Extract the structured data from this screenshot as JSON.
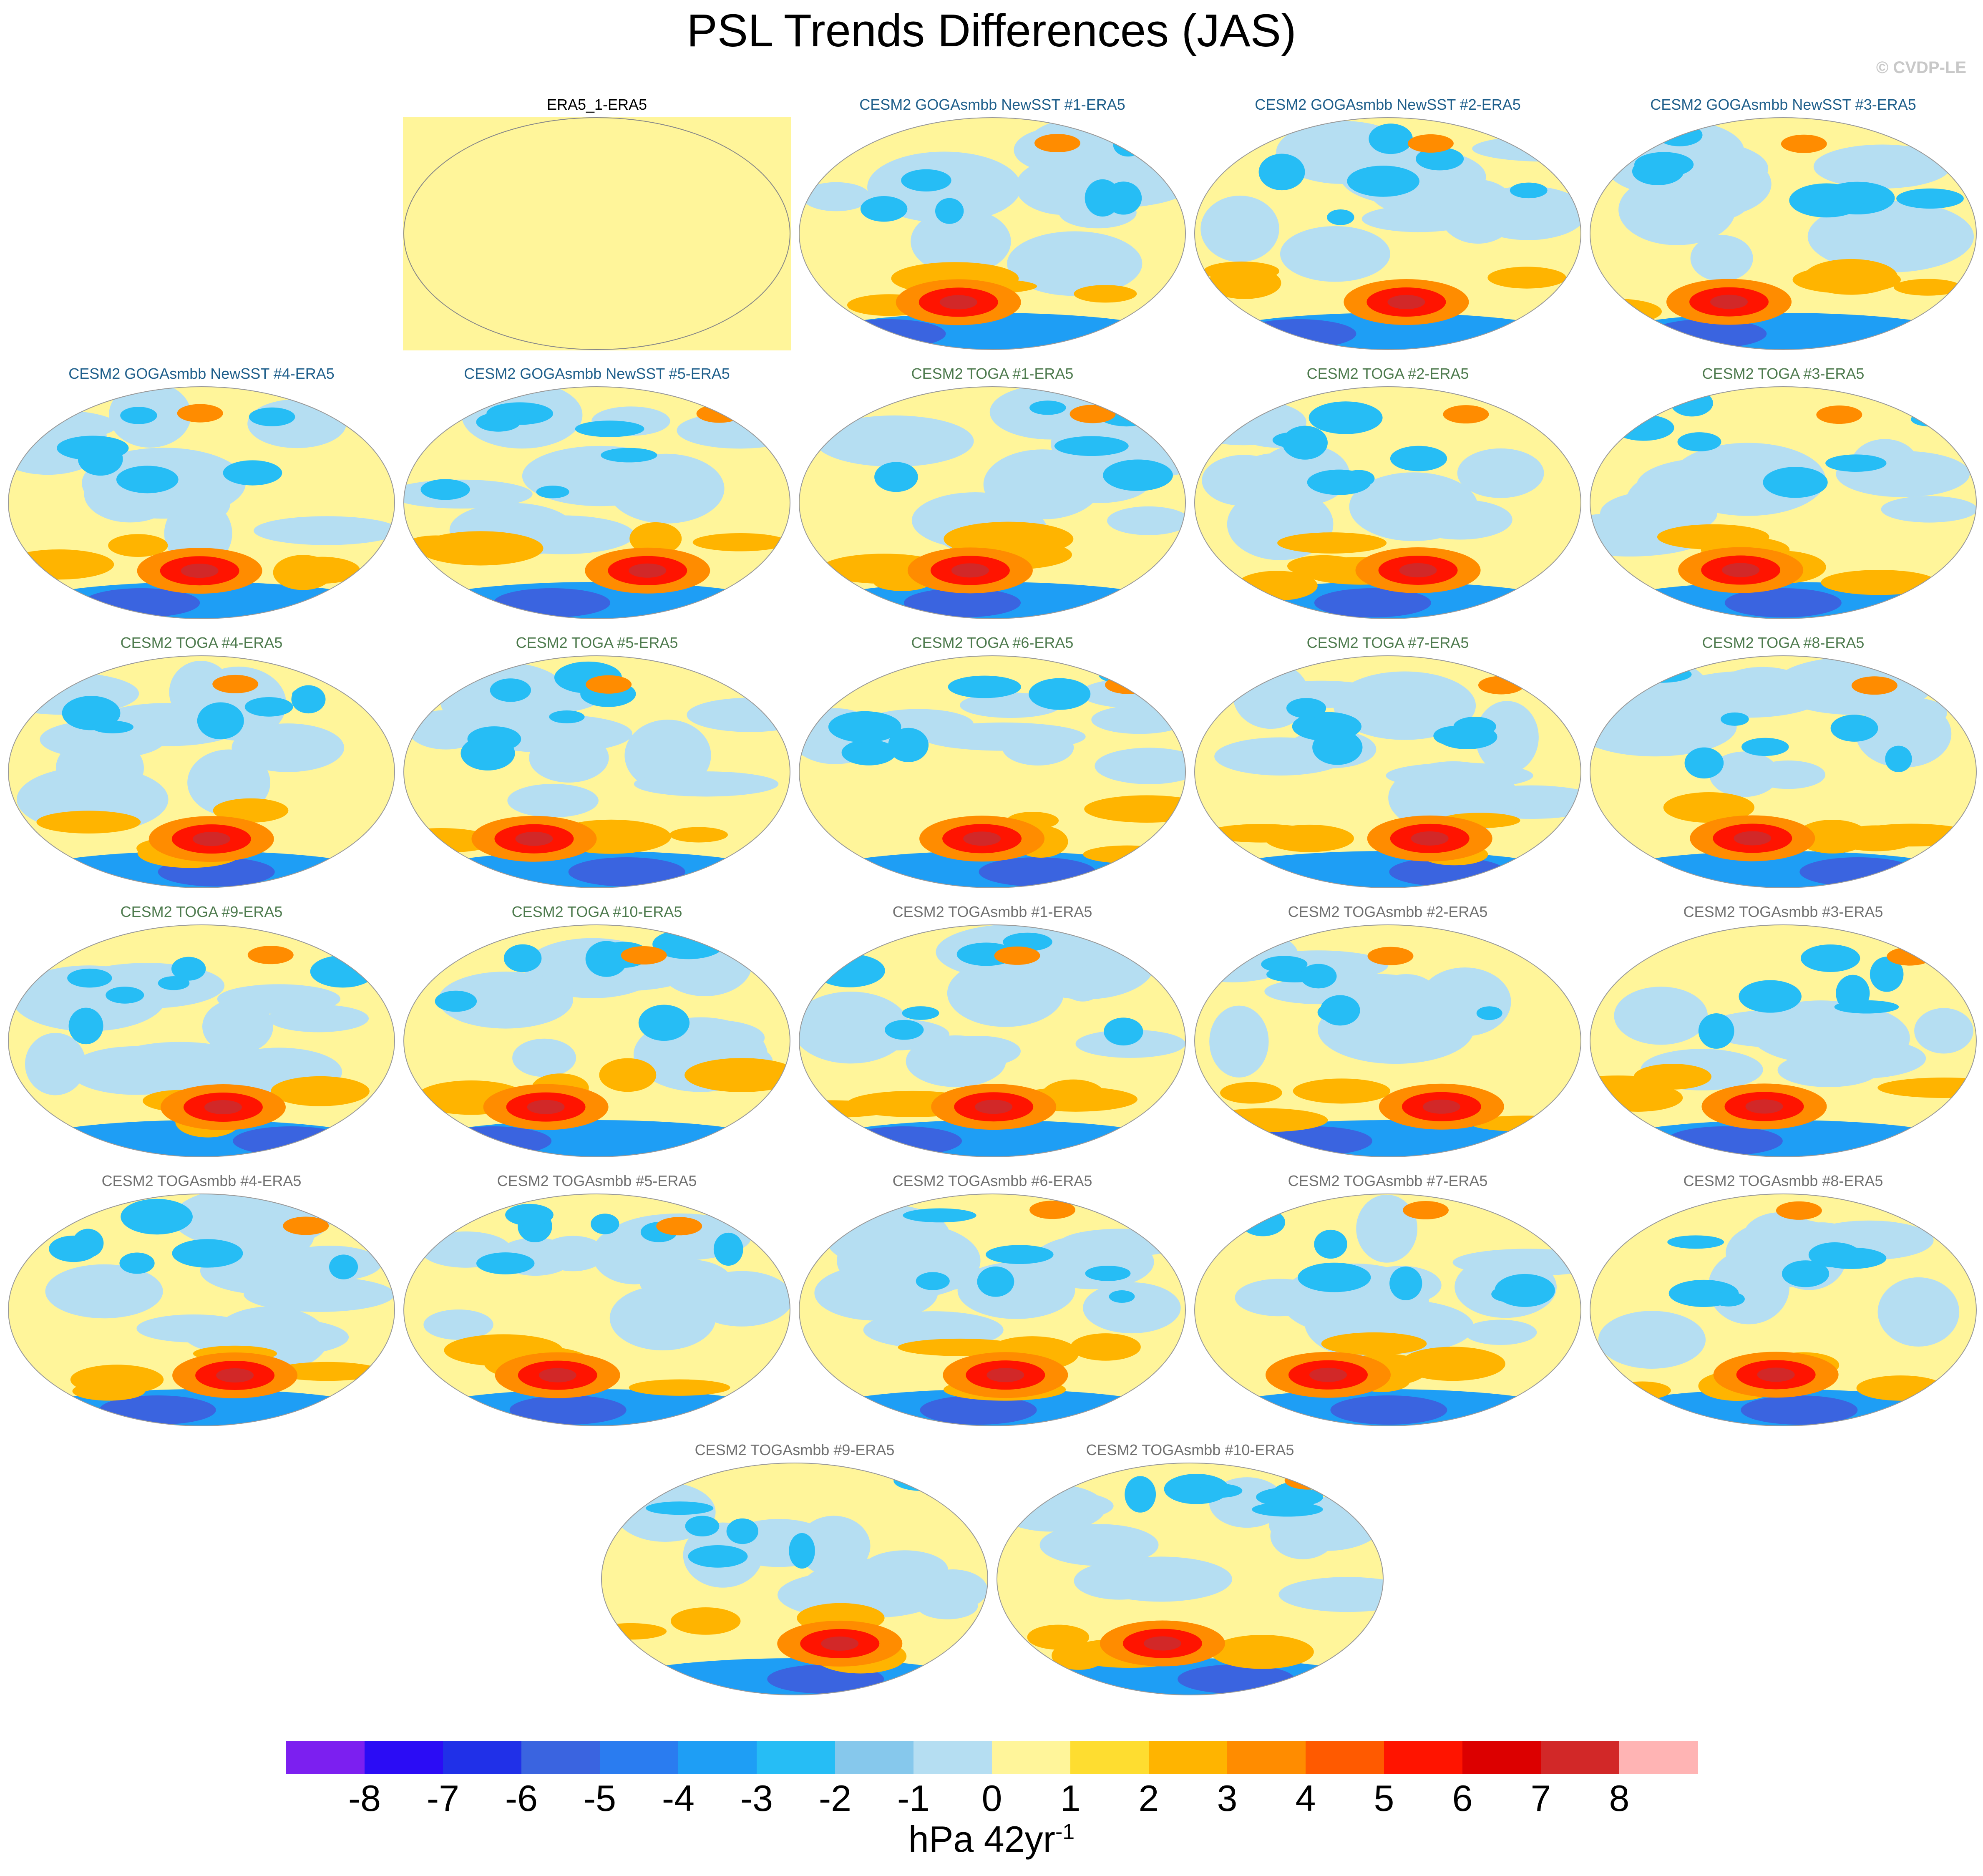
{
  "title": "PSL Trends Differences (JAS)",
  "credit": "© CVDP-LE",
  "panels": [
    {
      "label": "ERA5_1-ERA5",
      "group": "obs"
    },
    {
      "label": "CESM2 GOGAsmbb NewSST #1-ERA5",
      "group": "goga"
    },
    {
      "label": "CESM2 GOGAsmbb NewSST #2-ERA5",
      "group": "goga"
    },
    {
      "label": "CESM2 GOGAsmbb NewSST #3-ERA5",
      "group": "goga"
    },
    {
      "label": "CESM2 GOGAsmbb NewSST #4-ERA5",
      "group": "goga"
    },
    {
      "label": "CESM2 GOGAsmbb NewSST #5-ERA5",
      "group": "goga"
    },
    {
      "label": "CESM2 TOGA #1-ERA5",
      "group": "toga"
    },
    {
      "label": "CESM2 TOGA #2-ERA5",
      "group": "toga"
    },
    {
      "label": "CESM2 TOGA #3-ERA5",
      "group": "toga"
    },
    {
      "label": "CESM2 TOGA #4-ERA5",
      "group": "toga"
    },
    {
      "label": "CESM2 TOGA #5-ERA5",
      "group": "toga"
    },
    {
      "label": "CESM2 TOGA #6-ERA5",
      "group": "toga"
    },
    {
      "label": "CESM2 TOGA #7-ERA5",
      "group": "toga"
    },
    {
      "label": "CESM2 TOGA #8-ERA5",
      "group": "toga"
    },
    {
      "label": "CESM2 TOGA #9-ERA5",
      "group": "toga"
    },
    {
      "label": "CESM2 TOGA #10-ERA5",
      "group": "toga"
    },
    {
      "label": "CESM2 TOGAsmbb #1-ERA5",
      "group": "togasmbb"
    },
    {
      "label": "CESM2 TOGAsmbb #2-ERA5",
      "group": "togasmbb"
    },
    {
      "label": "CESM2 TOGAsmbb #3-ERA5",
      "group": "togasmbb"
    },
    {
      "label": "CESM2 TOGAsmbb #4-ERA5",
      "group": "togasmbb"
    },
    {
      "label": "CESM2 TOGAsmbb #5-ERA5",
      "group": "togasmbb"
    },
    {
      "label": "CESM2 TOGAsmbb #6-ERA5",
      "group": "togasmbb"
    },
    {
      "label": "CESM2 TOGAsmbb #7-ERA5",
      "group": "togasmbb"
    },
    {
      "label": "CESM2 TOGAsmbb #8-ERA5",
      "group": "togasmbb"
    },
    {
      "label": "CESM2 TOGAsmbb #9-ERA5",
      "group": "togasmbb"
    },
    {
      "label": "CESM2 TOGAsmbb #10-ERA5",
      "group": "togasmbb"
    }
  ],
  "group_colors": {
    "obs": "#000000",
    "goga": "#1f5f8b",
    "toga": "#4d7a4d",
    "togasmbb": "#707070"
  },
  "colorbar": {
    "ticks": [
      "-8",
      "-7",
      "-6",
      "-5",
      "-4",
      "-3",
      "-2",
      "-1",
      "0",
      "1",
      "2",
      "3",
      "4",
      "5",
      "6",
      "7",
      "8"
    ],
    "colors": [
      "#7c1ff0",
      "#2b0cf5",
      "#2030e8",
      "#3a64e0",
      "#2a7cf0",
      "#1e9ef5",
      "#26bdf5",
      "#86c8ec",
      "#b5def2",
      "#fff59a",
      "#fedd30",
      "#ffb400",
      "#ff8c00",
      "#ff5a00",
      "#ff1400",
      "#dc0000",
      "#d22828",
      "#ffb4b4"
    ],
    "unit": "hPa 42yr",
    "unit_exponent": "-1"
  },
  "chart_data": {
    "type": "heatmap",
    "title": "PSL Trends Differences (JAS)",
    "variable": "PSL trend difference (JAS)",
    "unit": "hPa 42yr-1",
    "contour_levels": [
      -8,
      -7,
      -6,
      -5,
      -4,
      -3,
      -2,
      -1,
      0,
      1,
      2,
      3,
      4,
      5,
      6,
      7,
      8
    ],
    "panel_count": 26,
    "map_projection": "global ellipse, Pacific-centered",
    "note_first_panel": "ERA5_1-ERA5 is uniformly 0 to 1 (no difference)"
  }
}
